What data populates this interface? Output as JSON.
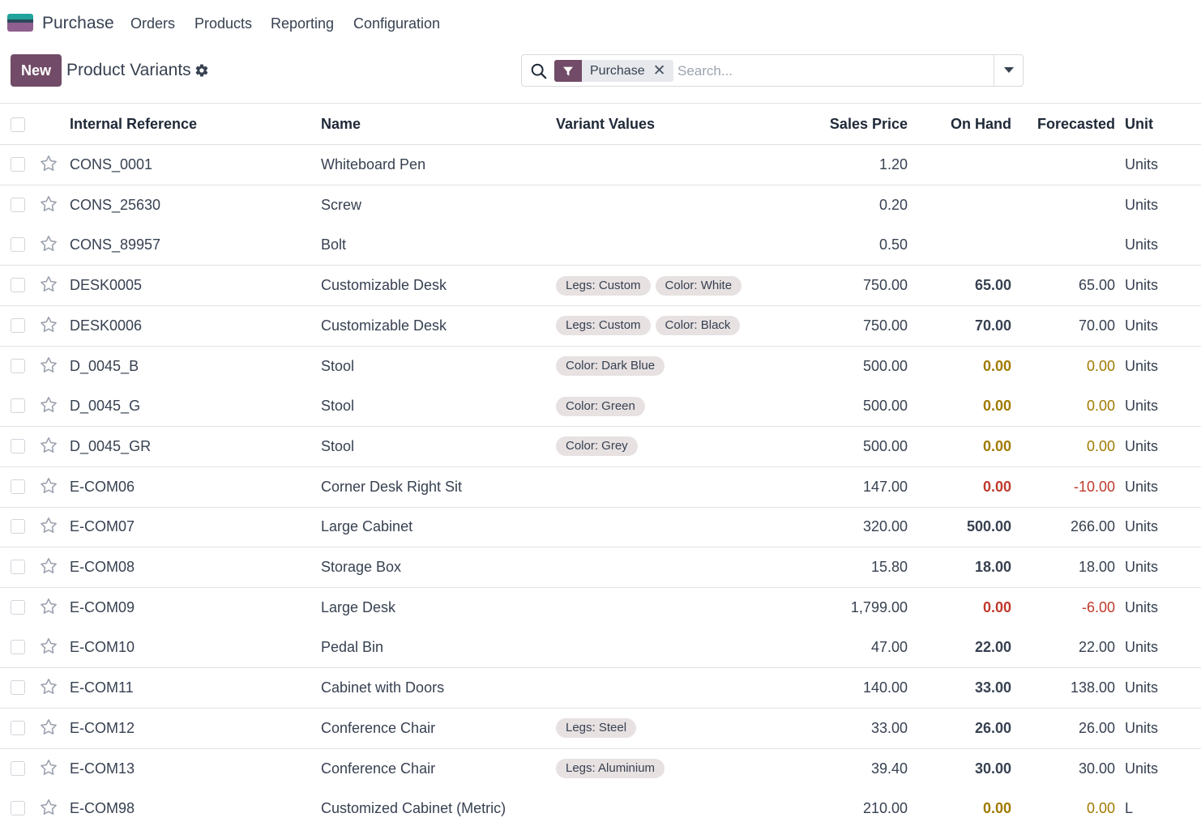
{
  "app": {
    "name": "Purchase",
    "nav": [
      "Orders",
      "Products",
      "Reporting",
      "Configuration"
    ]
  },
  "control": {
    "new_label": "New",
    "title": "Product Variants"
  },
  "search": {
    "facet_label": "Purchase",
    "placeholder": "Search..."
  },
  "table": {
    "headers": {
      "internal_reference": "Internal Reference",
      "name": "Name",
      "variant_values": "Variant Values",
      "sales_price": "Sales Price",
      "on_hand": "On Hand",
      "forecasted": "Forecasted",
      "unit": "Unit"
    },
    "rows": [
      {
        "ref": "CONS_0001",
        "name": "Whiteboard Pen",
        "variants": [],
        "price": "1.20",
        "on_hand": "",
        "on_hand_state": "",
        "forecast": "",
        "forecast_state": "",
        "unit": "Units"
      },
      {
        "ref": "CONS_25630",
        "name": "Screw",
        "variants": [],
        "price": "0.20",
        "on_hand": "",
        "on_hand_state": "",
        "forecast": "",
        "forecast_state": "",
        "unit": "Units"
      },
      {
        "ref": "CONS_89957",
        "name": "Bolt",
        "variants": [],
        "price": "0.50",
        "on_hand": "",
        "on_hand_state": "",
        "forecast": "",
        "forecast_state": "",
        "unit": "Units"
      },
      {
        "ref": "DESK0005",
        "name": "Customizable Desk",
        "variants": [
          "Legs: Custom",
          "Color: White"
        ],
        "price": "750.00",
        "on_hand": "65.00",
        "on_hand_state": "normal",
        "forecast": "65.00",
        "forecast_state": "normal",
        "unit": "Units"
      },
      {
        "ref": "DESK0006",
        "name": "Customizable Desk",
        "variants": [
          "Legs: Custom",
          "Color: Black"
        ],
        "price": "750.00",
        "on_hand": "70.00",
        "on_hand_state": "normal",
        "forecast": "70.00",
        "forecast_state": "normal",
        "unit": "Units"
      },
      {
        "ref": "D_0045_B",
        "name": "Stool",
        "variants": [
          "Color: Dark Blue"
        ],
        "price": "500.00",
        "on_hand": "0.00",
        "on_hand_state": "warn",
        "forecast": "0.00",
        "forecast_state": "warn",
        "unit": "Units"
      },
      {
        "ref": "D_0045_G",
        "name": "Stool",
        "variants": [
          "Color: Green"
        ],
        "price": "500.00",
        "on_hand": "0.00",
        "on_hand_state": "warn",
        "forecast": "0.00",
        "forecast_state": "warn",
        "unit": "Units"
      },
      {
        "ref": "D_0045_GR",
        "name": "Stool",
        "variants": [
          "Color: Grey"
        ],
        "price": "500.00",
        "on_hand": "0.00",
        "on_hand_state": "warn",
        "forecast": "0.00",
        "forecast_state": "warn",
        "unit": "Units"
      },
      {
        "ref": "E-COM06",
        "name": "Corner Desk Right Sit",
        "variants": [],
        "price": "147.00",
        "on_hand": "0.00",
        "on_hand_state": "danger",
        "forecast": "-10.00",
        "forecast_state": "danger",
        "unit": "Units"
      },
      {
        "ref": "E-COM07",
        "name": "Large Cabinet",
        "variants": [],
        "price": "320.00",
        "on_hand": "500.00",
        "on_hand_state": "normal",
        "forecast": "266.00",
        "forecast_state": "normal",
        "unit": "Units"
      },
      {
        "ref": "E-COM08",
        "name": "Storage Box",
        "variants": [],
        "price": "15.80",
        "on_hand": "18.00",
        "on_hand_state": "normal",
        "forecast": "18.00",
        "forecast_state": "normal",
        "unit": "Units"
      },
      {
        "ref": "E-COM09",
        "name": "Large Desk",
        "variants": [],
        "price": "1,799.00",
        "on_hand": "0.00",
        "on_hand_state": "danger",
        "forecast": "-6.00",
        "forecast_state": "danger",
        "unit": "Units"
      },
      {
        "ref": "E-COM10",
        "name": "Pedal Bin",
        "variants": [],
        "price": "47.00",
        "on_hand": "22.00",
        "on_hand_state": "normal",
        "forecast": "22.00",
        "forecast_state": "normal",
        "unit": "Units"
      },
      {
        "ref": "E-COM11",
        "name": "Cabinet with Doors",
        "variants": [],
        "price": "140.00",
        "on_hand": "33.00",
        "on_hand_state": "normal",
        "forecast": "138.00",
        "forecast_state": "normal",
        "unit": "Units"
      },
      {
        "ref": "E-COM12",
        "name": "Conference Chair",
        "variants": [
          "Legs: Steel"
        ],
        "price": "33.00",
        "on_hand": "26.00",
        "on_hand_state": "normal",
        "forecast": "26.00",
        "forecast_state": "normal",
        "unit": "Units"
      },
      {
        "ref": "E-COM13",
        "name": "Conference Chair",
        "variants": [
          "Legs: Aluminium"
        ],
        "price": "39.40",
        "on_hand": "30.00",
        "on_hand_state": "normal",
        "forecast": "30.00",
        "forecast_state": "normal",
        "unit": "Units"
      },
      {
        "ref": "E-COM98",
        "name": "Customized Cabinet (Metric)",
        "variants": [],
        "price": "210.00",
        "on_hand": "0.00",
        "on_hand_state": "warn",
        "forecast": "0.00",
        "forecast_state": "warn",
        "unit": "L"
      }
    ]
  },
  "colors": {
    "brand": "#714b67",
    "warning": "#a07a00",
    "danger": "#c0392b"
  },
  "icons": {
    "logo": "purchase-app-icon",
    "settings": "gear-icon",
    "search": "search-icon",
    "filter": "filter-icon",
    "close": "close-icon",
    "dropdown": "caret-down-icon",
    "favorite": "star-icon",
    "select": "checkbox-icon"
  }
}
